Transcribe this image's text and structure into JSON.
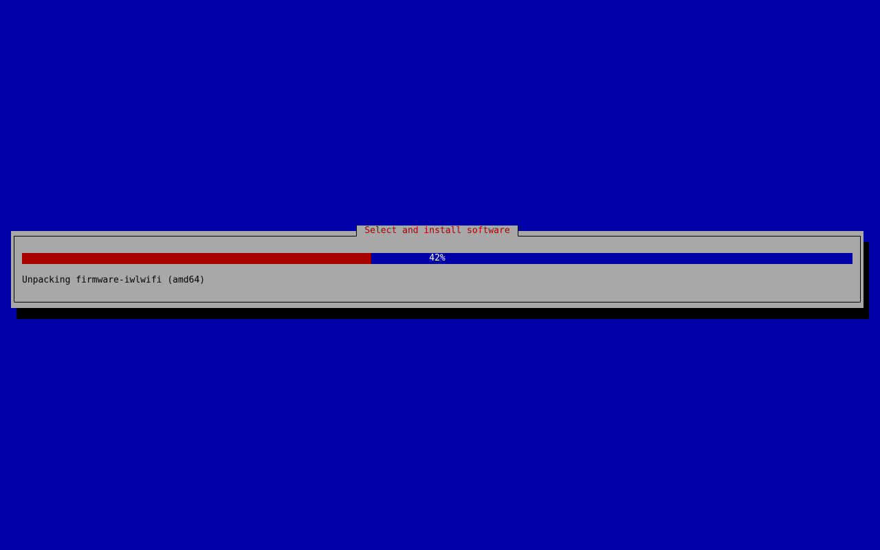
{
  "dialog": {
    "title": "Select and install software",
    "progress_percent": 42,
    "progress_label": "42%",
    "status": "Unpacking firmware-iwlwifi (amd64)"
  },
  "colors": {
    "background": "#0000a8",
    "dialog": "#a8a8a8",
    "progress_fill": "#a80000",
    "title": "#a80000"
  }
}
